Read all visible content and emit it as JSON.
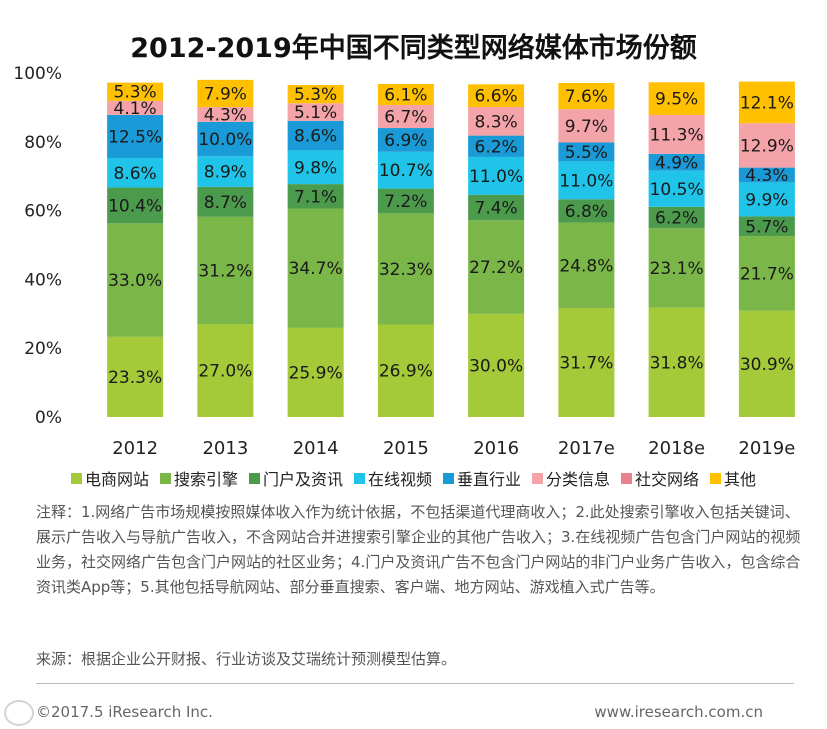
{
  "title": "2012-2019年中国不同类型网络媒体市场份额",
  "chart_data": {
    "type": "bar",
    "stacked": true,
    "percent": true,
    "title": "2012-2019年中国不同类型网络媒体市场份额",
    "categories": [
      "2012",
      "2013",
      "2014",
      "2015",
      "2016",
      "2017e",
      "2018e",
      "2019e"
    ],
    "y_ticks": [
      "0%",
      "20%",
      "40%",
      "60%",
      "80%",
      "100%"
    ],
    "ylim": [
      0,
      100
    ],
    "grid": false,
    "legend_position": "bottom",
    "series": [
      {
        "name": "电商网站",
        "color": "#a4c939",
        "values": [
          23.3,
          27.0,
          25.9,
          26.9,
          30.0,
          31.7,
          31.8,
          30.9
        ],
        "labels": [
          "23.3%",
          "27.0%",
          "25.9%",
          "26.9%",
          "30.0%",
          "31.7%",
          "31.8%",
          "30.9%"
        ]
      },
      {
        "name": "搜索引擎",
        "color": "#7ab648",
        "values": [
          33.0,
          31.2,
          34.7,
          32.3,
          27.2,
          24.8,
          23.1,
          21.7
        ],
        "labels": [
          "33.0%",
          "31.2%",
          "34.7%",
          "32.3%",
          "27.2%",
          "24.8%",
          "23.1%",
          "21.7%"
        ]
      },
      {
        "name": "门户及资讯",
        "color": "#4c9a4c",
        "values": [
          10.4,
          8.7,
          7.1,
          7.2,
          7.4,
          6.8,
          6.2,
          5.7
        ],
        "labels": [
          "10.4%",
          "8.7%",
          "7.1%",
          "7.2%",
          "7.4%",
          "6.8%",
          "6.2%",
          "5.7%"
        ]
      },
      {
        "name": "在线视频",
        "color": "#1fc4e8",
        "values": [
          8.6,
          8.9,
          9.8,
          10.7,
          11.0,
          11.0,
          10.5,
          9.9
        ],
        "labels": [
          "8.6%",
          "8.9%",
          "9.8%",
          "10.7%",
          "11.0%",
          "11.0%",
          "10.5%",
          "9.9%"
        ]
      },
      {
        "name": "垂直行业",
        "color": "#1a9ad6",
        "values": [
          12.5,
          10.0,
          8.6,
          6.9,
          6.2,
          5.5,
          4.9,
          4.3
        ],
        "labels": [
          "12.5%",
          "10.0%",
          "8.6%",
          "6.9%",
          "6.2%",
          "5.5%",
          "4.9%",
          "4.3%"
        ]
      },
      {
        "name": "分类信息",
        "color": "#f4a3a8",
        "values": [
          4.1,
          4.3,
          5.1,
          6.7,
          8.3,
          9.7,
          11.3,
          12.9
        ],
        "labels": [
          "4.1%",
          "4.3%",
          "5.1%",
          "6.7%",
          "8.3%",
          "9.7%",
          "11.3%",
          "12.9%"
        ]
      },
      {
        "name": "社交网络",
        "color": "#e8828c",
        "values": [
          0,
          0,
          0,
          0,
          0,
          0,
          0,
          0
        ],
        "labels": [
          "",
          "",
          "",
          "",
          "",
          "",
          "",
          ""
        ]
      },
      {
        "name": "其他",
        "color": "#ffc000",
        "values": [
          5.3,
          7.9,
          5.3,
          6.1,
          6.6,
          7.6,
          9.5,
          12.1
        ],
        "labels": [
          "5.3%",
          "7.9%",
          "5.3%",
          "6.1%",
          "6.6%",
          "7.6%",
          "9.5%",
          "12.1%"
        ]
      }
    ]
  },
  "note": "注释：1.网络广告市场规模按照媒体收入作为统计依据，不包括渠道代理商收入；2.此处搜索引擎收入包括关键词、展示广告收入与导航广告收入，不含网站合并进搜索引擎企业的其他广告收入；3.在线视频广告包含门户网站的视频业务，社交网络广告包含门户网站的社区业务；4.门户及资讯广告不包含门户网站的非门户业务广告收入，包含综合资讯类App等；5.其他包括导航网站、部分垂直搜索、客户端、地方网站、游戏植入式广告等。",
  "source": "来源：根据企业公开财报、行业访谈及艾瑞统计预测模型估算。",
  "footer": {
    "copyright": "©2017.5 iResearch Inc.",
    "website": "www.iresearch.com.cn"
  }
}
